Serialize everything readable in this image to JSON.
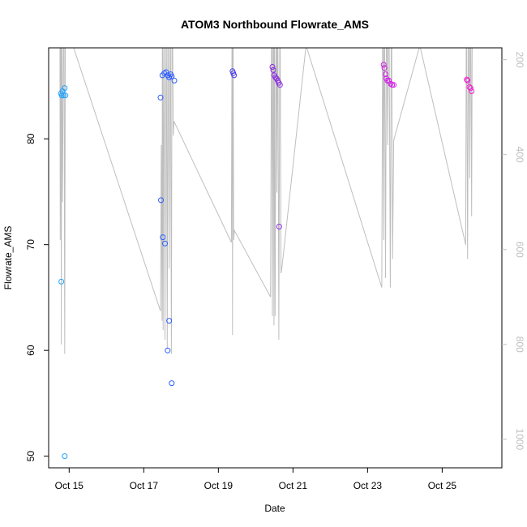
{
  "chart_data": {
    "type": "scatter",
    "title": "ATOM3 Northbound Flowrate_AMS",
    "xlabel": "Date",
    "ylabel": "Flowrate_AMS",
    "xlim": [
      14.45,
      26.6
    ],
    "ylim": [
      48.9,
      88.6
    ],
    "x_tick_labels": [
      {
        "x": 15,
        "label": "Oct 15"
      },
      {
        "x": 17,
        "label": "Oct 17"
      },
      {
        "x": 19,
        "label": "Oct 19"
      },
      {
        "x": 21,
        "label": "Oct 21"
      },
      {
        "x": 23,
        "label": "Oct 23"
      },
      {
        "x": 25,
        "label": "Oct 25"
      }
    ],
    "y_ticks": [
      50,
      60,
      70,
      80
    ],
    "y2_lim": [
      1060,
      175
    ],
    "y2_ticks": [
      200,
      400,
      600,
      800,
      1000
    ],
    "colors": {
      "line": "#bebebe",
      "axis": "#000000",
      "right_axis": "#bebebe"
    },
    "points": [
      {
        "x": 14.78,
        "y": 84.3,
        "color": "#1fa3ff"
      },
      {
        "x": 14.8,
        "y": 84.1,
        "color": "#1fa3ff"
      },
      {
        "x": 14.82,
        "y": 84.5,
        "color": "#1fa3ff"
      },
      {
        "x": 14.85,
        "y": 84.1,
        "color": "#1fa3ff"
      },
      {
        "x": 14.88,
        "y": 84.8,
        "color": "#1fa3ff"
      },
      {
        "x": 14.9,
        "y": 84.1,
        "color": "#1fa3ff"
      },
      {
        "x": 14.79,
        "y": 66.5,
        "color": "#1fa3ff"
      },
      {
        "x": 14.88,
        "y": 50.0,
        "color": "#1fa3ff"
      },
      {
        "x": 17.45,
        "y": 83.9,
        "color": "#2a5cff"
      },
      {
        "x": 17.46,
        "y": 74.2,
        "color": "#2a5cff"
      },
      {
        "x": 17.51,
        "y": 70.7,
        "color": "#2a5cff"
      },
      {
        "x": 17.57,
        "y": 70.1,
        "color": "#2a5cff"
      },
      {
        "x": 17.5,
        "y": 86.0,
        "color": "#2a5cff"
      },
      {
        "x": 17.55,
        "y": 86.2,
        "color": "#2a5cff"
      },
      {
        "x": 17.6,
        "y": 86.3,
        "color": "#2a5cff"
      },
      {
        "x": 17.64,
        "y": 86.0,
        "color": "#2a5cff"
      },
      {
        "x": 17.68,
        "y": 85.8,
        "color": "#2a5cff"
      },
      {
        "x": 17.72,
        "y": 86.1,
        "color": "#2a5cff"
      },
      {
        "x": 17.75,
        "y": 85.9,
        "color": "#2a5cff"
      },
      {
        "x": 17.82,
        "y": 85.5,
        "color": "#2a5cff"
      },
      {
        "x": 17.64,
        "y": 60.0,
        "color": "#2a5cff"
      },
      {
        "x": 17.68,
        "y": 62.8,
        "color": "#2a5cff"
      },
      {
        "x": 17.75,
        "y": 56.9,
        "color": "#2a5cff"
      },
      {
        "x": 19.38,
        "y": 86.4,
        "color": "#4a3cf0"
      },
      {
        "x": 19.4,
        "y": 86.2,
        "color": "#4a3cf0"
      },
      {
        "x": 19.42,
        "y": 86.0,
        "color": "#4a3cf0"
      },
      {
        "x": 20.45,
        "y": 86.8,
        "color": "#8a2be2"
      },
      {
        "x": 20.47,
        "y": 86.5,
        "color": "#8a2be2"
      },
      {
        "x": 20.5,
        "y": 86.0,
        "color": "#8a2be2"
      },
      {
        "x": 20.53,
        "y": 85.8,
        "color": "#8a2be2"
      },
      {
        "x": 20.56,
        "y": 85.7,
        "color": "#8a2be2"
      },
      {
        "x": 20.59,
        "y": 85.5,
        "color": "#8a2be2"
      },
      {
        "x": 20.62,
        "y": 85.3,
        "color": "#8a2be2"
      },
      {
        "x": 20.65,
        "y": 85.1,
        "color": "#8a2be2"
      },
      {
        "x": 20.63,
        "y": 71.7,
        "color": "#8a2be2"
      },
      {
        "x": 23.43,
        "y": 87.0,
        "color": "#d21fe6"
      },
      {
        "x": 23.45,
        "y": 86.7,
        "color": "#d21fe6"
      },
      {
        "x": 23.48,
        "y": 86.1,
        "color": "#d21fe6"
      },
      {
        "x": 23.5,
        "y": 85.7,
        "color": "#d21fe6"
      },
      {
        "x": 23.53,
        "y": 85.5,
        "color": "#d21fe6"
      },
      {
        "x": 23.57,
        "y": 85.5,
        "color": "#d21fe6"
      },
      {
        "x": 23.62,
        "y": 85.2,
        "color": "#d21fe6"
      },
      {
        "x": 23.66,
        "y": 85.1,
        "color": "#d21fe6"
      },
      {
        "x": 23.7,
        "y": 85.1,
        "color": "#d21fe6"
      },
      {
        "x": 25.66,
        "y": 85.6,
        "color": "#f01fd0"
      },
      {
        "x": 25.68,
        "y": 85.5,
        "color": "#f01fd0"
      },
      {
        "x": 25.73,
        "y": 84.9,
        "color": "#f01fd0"
      },
      {
        "x": 25.76,
        "y": 84.8,
        "color": "#f01fd0"
      },
      {
        "x": 25.79,
        "y": 84.5,
        "color": "#f01fd0"
      }
    ],
    "y2_line": [
      [
        14.75,
        0
      ],
      [
        14.76,
        580
      ],
      [
        14.78,
        0
      ],
      [
        14.79,
        800
      ],
      [
        14.8,
        0
      ],
      [
        14.82,
        500
      ],
      [
        14.86,
        0
      ],
      [
        14.88,
        820
      ],
      [
        14.9,
        0
      ],
      [
        15.1,
        170
      ],
      [
        17.45,
        730
      ],
      [
        17.47,
        380
      ],
      [
        17.49,
        750
      ],
      [
        17.5,
        0
      ],
      [
        17.52,
        770
      ],
      [
        17.54,
        0
      ],
      [
        17.57,
        790
      ],
      [
        17.6,
        0
      ],
      [
        17.63,
        810
      ],
      [
        17.65,
        0
      ],
      [
        17.68,
        640
      ],
      [
        17.71,
        0
      ],
      [
        17.74,
        820
      ],
      [
        17.76,
        0
      ],
      [
        17.79,
        360
      ],
      [
        17.81,
        330
      ],
      [
        19.35,
        585
      ],
      [
        19.37,
        0
      ],
      [
        19.38,
        780
      ],
      [
        19.39,
        0
      ],
      [
        19.41,
        580
      ],
      [
        19.43,
        560
      ],
      [
        20.4,
        700
      ],
      [
        20.43,
        0
      ],
      [
        20.45,
        740
      ],
      [
        20.47,
        0
      ],
      [
        20.49,
        760
      ],
      [
        20.5,
        0
      ],
      [
        20.52,
        740
      ],
      [
        20.55,
        0
      ],
      [
        20.57,
        480
      ],
      [
        20.59,
        0
      ],
      [
        20.62,
        790
      ],
      [
        20.65,
        0
      ],
      [
        20.68,
        650
      ],
      [
        20.7,
        640
      ],
      [
        21.35,
        170
      ],
      [
        23.38,
        680
      ],
      [
        23.41,
        0
      ],
      [
        23.43,
        580
      ],
      [
        23.45,
        0
      ],
      [
        23.48,
        660
      ],
      [
        23.51,
        0
      ],
      [
        23.54,
        380
      ],
      [
        23.57,
        0
      ],
      [
        23.61,
        680
      ],
      [
        23.64,
        0
      ],
      [
        23.67,
        620
      ],
      [
        23.7,
        370
      ],
      [
        24.4,
        170
      ],
      [
        25.63,
        590
      ],
      [
        25.65,
        0
      ],
      [
        25.68,
        620
      ],
      [
        25.71,
        0
      ],
      [
        25.74,
        450
      ],
      [
        25.76,
        0
      ],
      [
        25.79,
        530
      ],
      [
        25.81,
        0
      ]
    ]
  }
}
